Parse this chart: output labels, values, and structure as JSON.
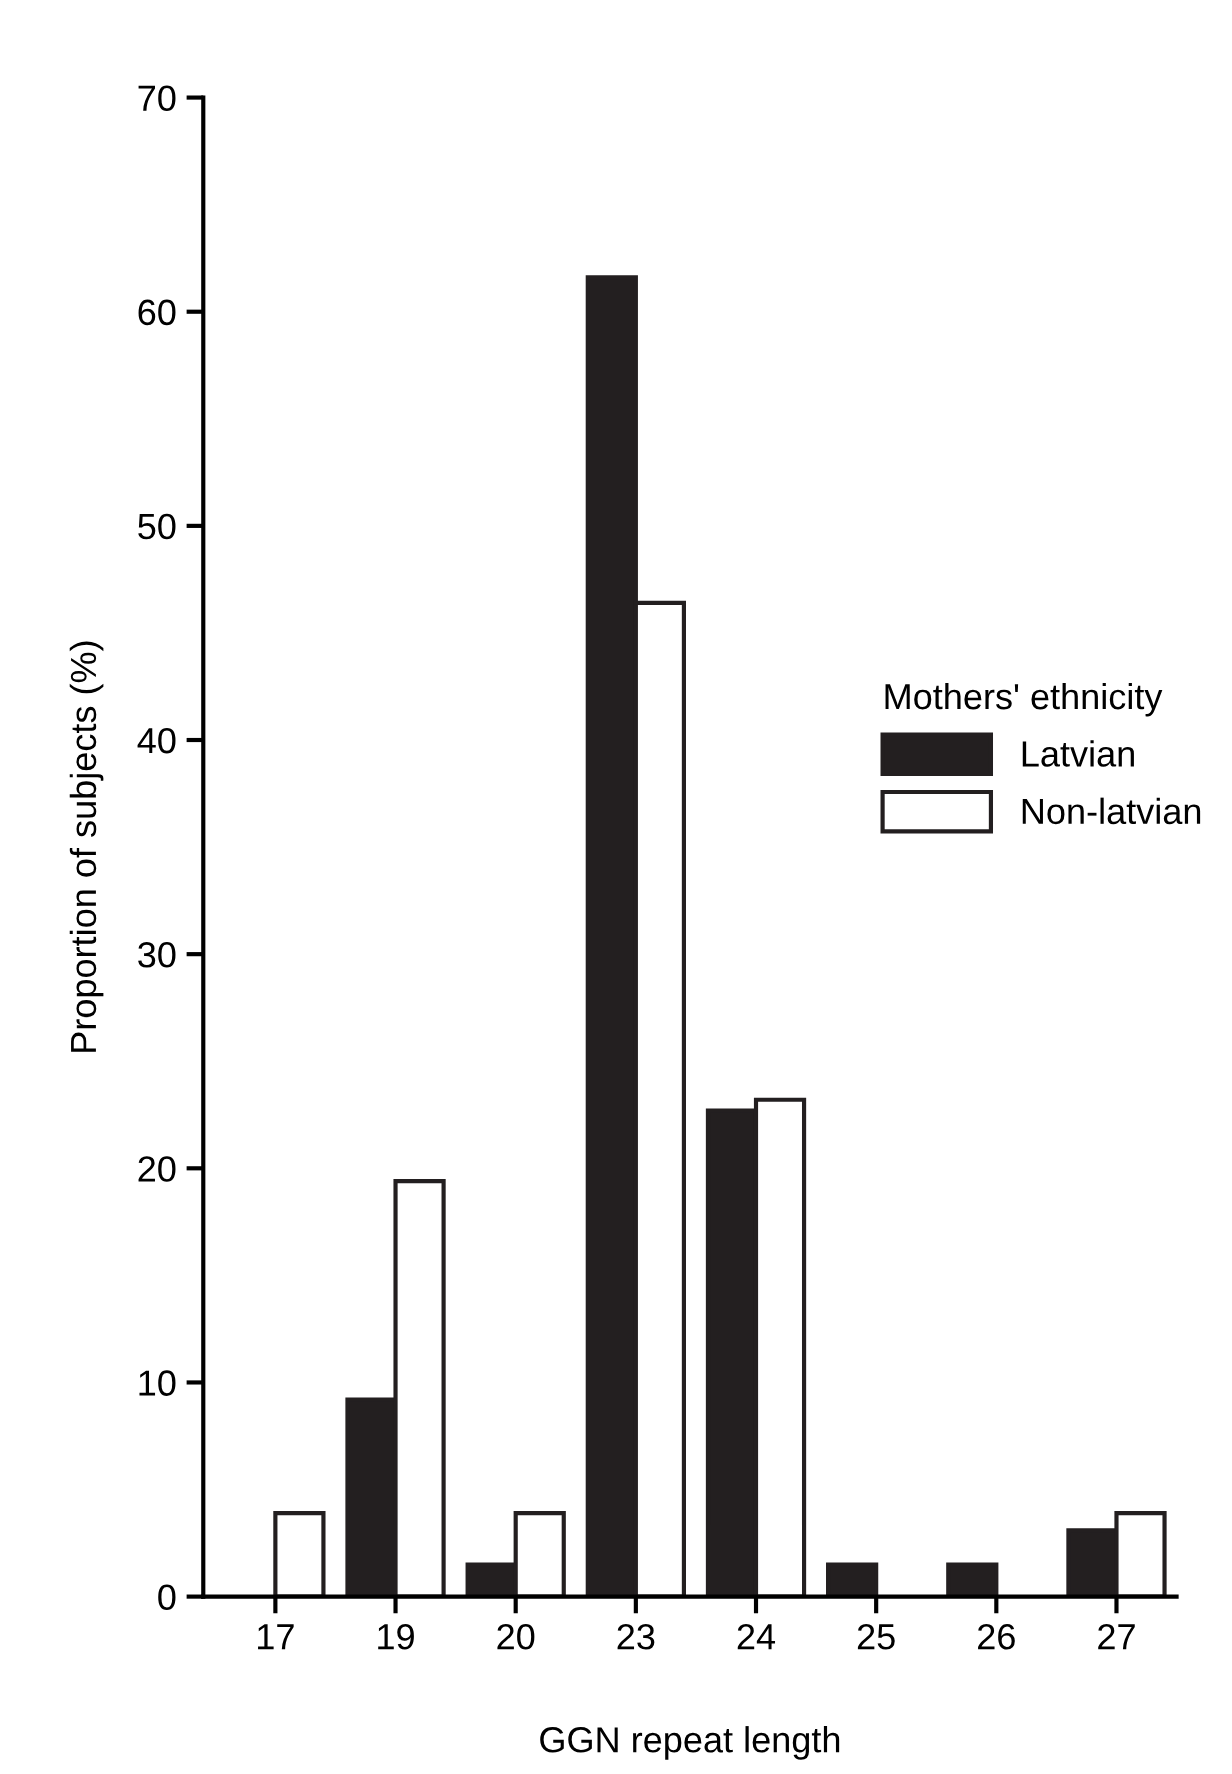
{
  "chart_data": {
    "type": "bar",
    "xlabel": "GGN repeat length",
    "ylabel": "Proportion of subjects (%)",
    "legend_title": "Mothers' ethnicity",
    "categories": [
      "17",
      "19",
      "20",
      "23",
      "24",
      "25",
      "26",
      "27"
    ],
    "series": [
      {
        "name": "Latvian",
        "color": "#231f20",
        "values": [
          0,
          9.2,
          1.5,
          61.6,
          22.7,
          1.5,
          1.5,
          3.1
        ]
      },
      {
        "name": "Non-latvian",
        "color": "#ffffff",
        "values": [
          3.9,
          19.4,
          3.9,
          46.4,
          23.2,
          0,
          0,
          3.9
        ]
      }
    ],
    "ylim": [
      0,
      70
    ],
    "yticks": [
      0,
      10,
      20,
      30,
      40,
      50,
      60,
      70
    ],
    "legend": "right",
    "grid": false
  }
}
